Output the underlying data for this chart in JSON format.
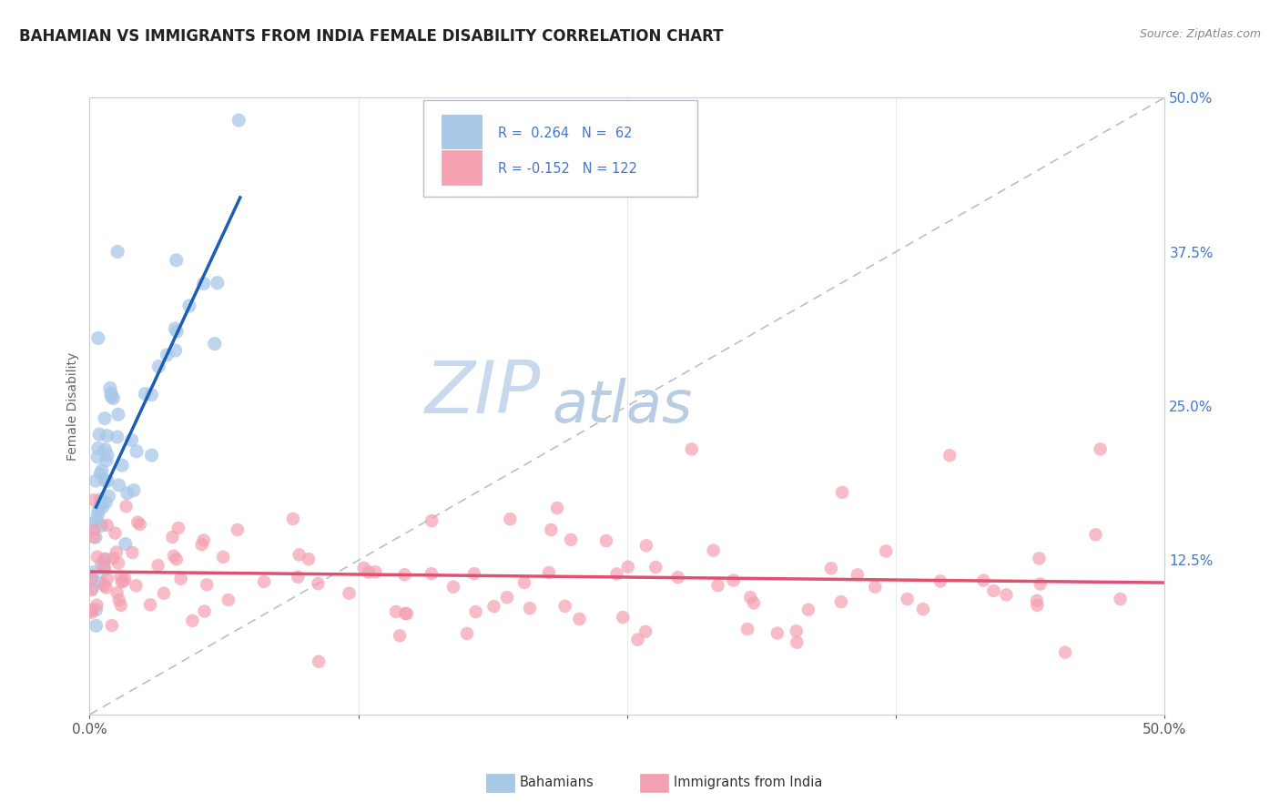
{
  "title": "BAHAMIAN VS IMMIGRANTS FROM INDIA FEMALE DISABILITY CORRELATION CHART",
  "source": "Source: ZipAtlas.com",
  "ylabel": "Female Disability",
  "xlim": [
    0.0,
    0.5
  ],
  "ylim": [
    0.0,
    0.5
  ],
  "blue_color": "#a8c8e8",
  "pink_color": "#f4a0b0",
  "blue_line_color": "#1a5fb4",
  "pink_line_color": "#e05070",
  "gray_dash_color": "#b0b8c8",
  "watermark_zip": "ZIP",
  "watermark_atlas": "atlas",
  "watermark_color": "#c8d8ee",
  "background_color": "#ffffff",
  "grid_color": "#e8e8f0",
  "title_color": "#222222",
  "source_color": "#888888",
  "axis_label_color": "#4477cc",
  "ylabel_color": "#666666",
  "bottom_legend_color": "#333333"
}
